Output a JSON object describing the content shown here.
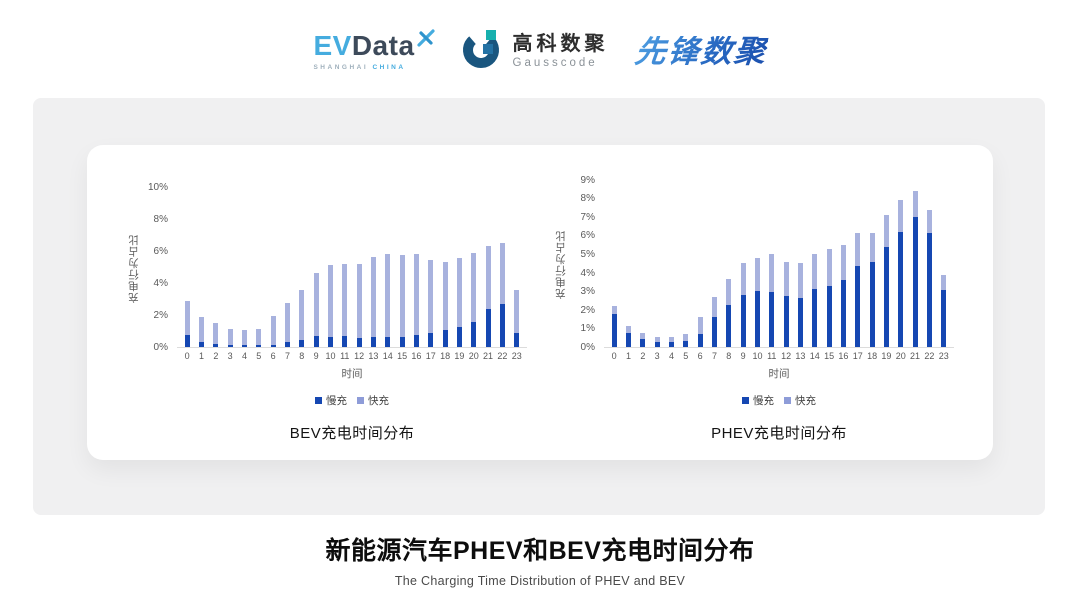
{
  "header": {
    "evdata_logo": {
      "ev": "EV",
      "data": "Data",
      "tagline_left": "SHANGHAI",
      "tagline_right": "CHINA"
    },
    "gausscode_logo": {
      "name_cn": "高科数聚",
      "name_en": "Gausscode"
    },
    "pioneer_logo": {
      "text": "先锋数聚"
    }
  },
  "colors": {
    "slow_charge": "#1547b2",
    "fast_charge": "#a8b2de",
    "legend_fast": "#8e9cd8",
    "axis_text": "#595959",
    "panel_bg": "#f0f0f1"
  },
  "chart_data": [
    {
      "type": "bar",
      "stacked": true,
      "title": "BEV充电时间分布",
      "xlabel": "时间",
      "ylabel": "充电行为占比",
      "unit": "%",
      "grid": false,
      "legend_position": "bottom",
      "x": [
        0,
        1,
        2,
        3,
        4,
        5,
        6,
        7,
        8,
        9,
        10,
        11,
        12,
        13,
        14,
        15,
        16,
        17,
        18,
        19,
        20,
        21,
        22,
        23
      ],
      "ylim": [
        0,
        10
      ],
      "ytick_step": 2,
      "series": [
        {
          "name": "慢充",
          "color_key": "slow_charge",
          "values": [
            0.75,
            0.33,
            0.18,
            0.1,
            0.1,
            0.1,
            0.15,
            0.33,
            0.46,
            0.68,
            0.65,
            0.68,
            0.57,
            0.6,
            0.63,
            0.65,
            0.75,
            0.9,
            1.05,
            1.25,
            1.55,
            2.35,
            2.7,
            0.9
          ]
        },
        {
          "name": "快充",
          "color_key": "fast_charge",
          "values": [
            2.15,
            1.57,
            1.32,
            1.05,
            0.95,
            1.05,
            1.8,
            2.45,
            3.1,
            3.92,
            4.5,
            4.52,
            4.63,
            5.0,
            5.17,
            5.1,
            5.05,
            4.55,
            4.25,
            4.3,
            4.35,
            3.95,
            3.8,
            2.65
          ]
        }
      ]
    },
    {
      "type": "bar",
      "stacked": true,
      "title": "PHEV充电时间分布",
      "xlabel": "时间",
      "ylabel": "充电行为占比",
      "unit": "%",
      "grid": false,
      "legend_position": "bottom",
      "x": [
        0,
        1,
        2,
        3,
        4,
        5,
        6,
        7,
        8,
        9,
        10,
        11,
        12,
        13,
        14,
        15,
        16,
        17,
        18,
        19,
        20,
        21,
        22,
        23
      ],
      "ylim": [
        0,
        9
      ],
      "ytick_step": 1,
      "series": [
        {
          "name": "慢充",
          "color_key": "slow_charge",
          "values": [
            1.75,
            0.75,
            0.45,
            0.25,
            0.25,
            0.3,
            0.7,
            1.6,
            2.28,
            2.82,
            3.02,
            2.96,
            2.77,
            2.63,
            3.13,
            3.27,
            3.6,
            4.38,
            4.55,
            5.4,
            6.2,
            7.0,
            6.15,
            3.05
          ]
        },
        {
          "name": "快充",
          "color_key": "fast_charge",
          "values": [
            0.45,
            0.4,
            0.3,
            0.3,
            0.3,
            0.4,
            0.9,
            1.1,
            1.37,
            1.68,
            1.78,
            2.04,
            1.83,
            1.87,
            1.87,
            1.98,
            1.9,
            1.77,
            1.6,
            1.7,
            1.7,
            1.4,
            1.2,
            0.8
          ]
        }
      ]
    }
  ],
  "footer": {
    "title": "新能源汽车PHEV和BEV充电时间分布",
    "subtitle": "The Charging Time Distribution of PHEV and BEV"
  }
}
